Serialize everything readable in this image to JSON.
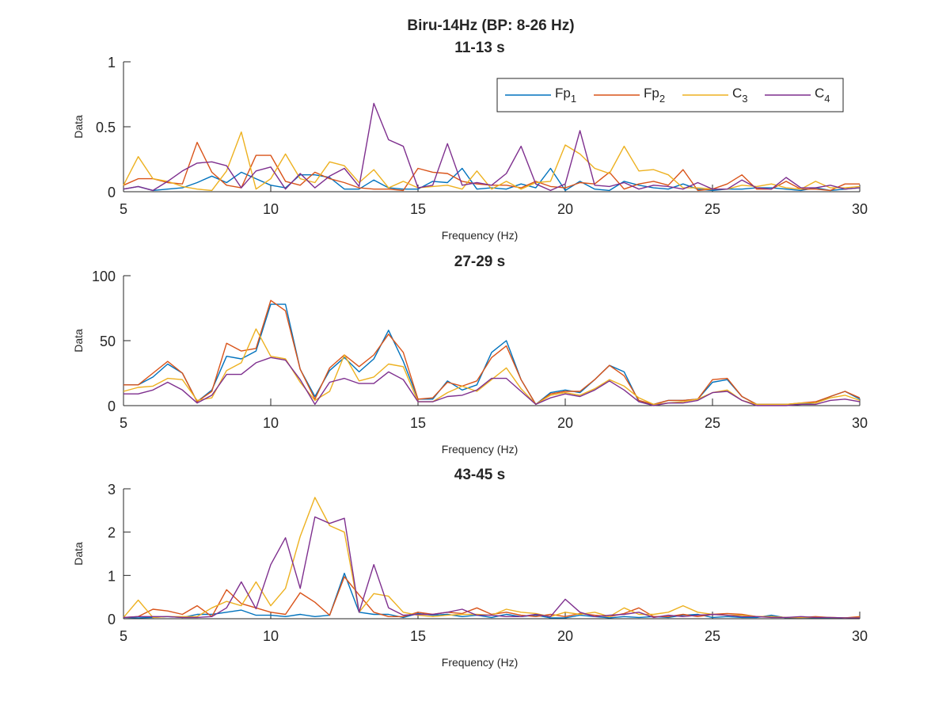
{
  "figure_title": "Biru-14Hz (BP: 8-26 Hz)",
  "legend": [
    {
      "name": "Fp",
      "sub": "1",
      "color": "#0072BD"
    },
    {
      "name": "Fp",
      "sub": "2",
      "color": "#D95319"
    },
    {
      "name": "C",
      "sub": "3",
      "color": "#EDB120"
    },
    {
      "name": "C",
      "sub": "4",
      "color": "#7E2F8E"
    }
  ],
  "chart_data": [
    {
      "type": "line",
      "title": "11-13 s",
      "xlabel": "Frequency (Hz)",
      "ylabel": "Data",
      "xlim": [
        5,
        30
      ],
      "ylim": [
        0,
        1
      ],
      "xticks": [
        5,
        10,
        15,
        20,
        25,
        30
      ],
      "yticks": [
        0,
        0.5,
        1
      ],
      "ytick_labels": [
        "0",
        "0.5",
        "1"
      ],
      "x": [
        5.0,
        5.5,
        6.0,
        6.5,
        7.0,
        7.5,
        8.0,
        8.5,
        9.0,
        9.5,
        10.0,
        10.5,
        11.0,
        11.5,
        12.0,
        12.5,
        13.0,
        13.5,
        14.0,
        14.5,
        15.0,
        15.5,
        16.0,
        16.5,
        17.0,
        17.5,
        18.0,
        18.5,
        19.0,
        19.5,
        20.0,
        20.5,
        21.0,
        21.5,
        22.0,
        22.5,
        23.0,
        23.5,
        24.0,
        24.5,
        25.0,
        25.5,
        26.0,
        26.5,
        27.0,
        27.5,
        28.0,
        28.5,
        29.0,
        29.5,
        30.0
      ],
      "series": [
        {
          "name": "Fp1",
          "values": [
            0.02,
            0.04,
            0.01,
            0.02,
            0.03,
            0.07,
            0.12,
            0.07,
            0.15,
            0.1,
            0.05,
            0.03,
            0.13,
            0.13,
            0.11,
            0.02,
            0.02,
            0.09,
            0.03,
            0.02,
            0.02,
            0.08,
            0.07,
            0.18,
            0.02,
            0.03,
            0.02,
            0.06,
            0.03,
            0.18,
            0.01,
            0.08,
            0.02,
            0.01,
            0.08,
            0.05,
            0.03,
            0.02,
            0.06,
            0.02,
            0.01,
            0.02,
            0.02,
            0.03,
            0.03,
            0.02,
            0.01,
            0.03,
            0.01,
            0.02,
            0.03
          ]
        },
        {
          "name": "Fp2",
          "values": [
            0.05,
            0.1,
            0.1,
            0.07,
            0.06,
            0.38,
            0.15,
            0.05,
            0.03,
            0.28,
            0.28,
            0.08,
            0.05,
            0.15,
            0.1,
            0.07,
            0.03,
            0.02,
            0.02,
            0.01,
            0.18,
            0.15,
            0.14,
            0.08,
            0.06,
            0.05,
            0.05,
            0.03,
            0.08,
            0.04,
            0.03,
            0.07,
            0.06,
            0.15,
            0.02,
            0.06,
            0.08,
            0.05,
            0.17,
            0.01,
            0.02,
            0.06,
            0.13,
            0.02,
            0.02,
            0.08,
            0.02,
            0.02,
            0.01,
            0.06,
            0.06
          ]
        },
        {
          "name": "C3",
          "values": [
            0.05,
            0.27,
            0.1,
            0.08,
            0.04,
            0.02,
            0.01,
            0.16,
            0.46,
            0.02,
            0.1,
            0.29,
            0.1,
            0.07,
            0.23,
            0.2,
            0.07,
            0.17,
            0.03,
            0.08,
            0.03,
            0.04,
            0.05,
            0.02,
            0.16,
            0.02,
            0.08,
            0.02,
            0.07,
            0.08,
            0.36,
            0.29,
            0.18,
            0.14,
            0.35,
            0.16,
            0.17,
            0.13,
            0.03,
            0.03,
            0.02,
            0.02,
            0.05,
            0.04,
            0.06,
            0.03,
            0.02,
            0.08,
            0.03,
            0.03,
            0.04
          ]
        },
        {
          "name": "C4",
          "values": [
            0.02,
            0.04,
            0.01,
            0.08,
            0.16,
            0.22,
            0.23,
            0.2,
            0.03,
            0.16,
            0.19,
            0.02,
            0.14,
            0.03,
            0.12,
            0.18,
            0.04,
            0.68,
            0.4,
            0.35,
            0.03,
            0.05,
            0.37,
            0.05,
            0.07,
            0.05,
            0.14,
            0.35,
            0.06,
            0.01,
            0.06,
            0.47,
            0.05,
            0.04,
            0.07,
            0.02,
            0.05,
            0.04,
            0.02,
            0.07,
            0.02,
            0.02,
            0.09,
            0.03,
            0.02,
            0.11,
            0.03,
            0.03,
            0.05,
            0.02,
            0.03
          ]
        }
      ]
    },
    {
      "type": "line",
      "title": "27-29 s",
      "xlabel": "Frequency (Hz)",
      "ylabel": "Data",
      "xlim": [
        5,
        30
      ],
      "ylim": [
        0,
        100
      ],
      "xticks": [
        5,
        10,
        15,
        20,
        25,
        30
      ],
      "yticks": [
        0,
        50,
        100
      ],
      "ytick_labels": [
        "0",
        "50",
        "100"
      ],
      "x": [
        5.0,
        5.5,
        6.0,
        6.5,
        7.0,
        7.5,
        8.0,
        8.5,
        9.0,
        9.5,
        10.0,
        10.5,
        11.0,
        11.5,
        12.0,
        12.5,
        13.0,
        13.5,
        14.0,
        14.5,
        15.0,
        15.5,
        16.0,
        16.5,
        17.0,
        17.5,
        18.0,
        18.5,
        19.0,
        19.5,
        20.0,
        20.5,
        21.0,
        21.5,
        22.0,
        22.5,
        23.0,
        23.5,
        24.0,
        24.5,
        25.0,
        25.5,
        26.0,
        26.5,
        27.0,
        27.5,
        28.0,
        28.5,
        29.0,
        29.5,
        30.0
      ],
      "series": [
        {
          "name": "Fp1",
          "values": [
            16,
            16,
            22,
            32,
            25,
            3,
            12,
            38,
            36,
            42,
            78,
            78,
            28,
            7,
            27,
            37,
            26,
            36,
            58,
            34,
            5,
            5,
            19,
            12,
            16,
            41,
            50,
            20,
            1,
            10,
            12,
            10,
            20,
            31,
            26,
            3,
            1,
            4,
            4,
            5,
            18,
            20,
            7,
            1,
            1,
            1,
            1,
            2,
            7,
            11,
            5
          ]
        },
        {
          "name": "Fp2",
          "values": [
            16,
            16,
            25,
            34,
            25,
            3,
            11,
            48,
            42,
            44,
            81,
            73,
            28,
            5,
            29,
            39,
            30,
            39,
            55,
            41,
            5,
            6,
            18,
            15,
            19,
            37,
            46,
            20,
            1,
            9,
            11,
            11,
            20,
            31,
            23,
            4,
            1,
            4,
            4,
            5,
            20,
            21,
            7,
            1,
            1,
            1,
            2,
            3,
            7,
            11,
            6
          ]
        },
        {
          "name": "C3",
          "values": [
            11,
            14,
            15,
            21,
            20,
            4,
            6,
            27,
            33,
            59,
            38,
            36,
            18,
            4,
            11,
            39,
            19,
            22,
            32,
            30,
            3,
            3,
            10,
            15,
            11,
            20,
            29,
            13,
            1,
            8,
            10,
            8,
            13,
            20,
            15,
            6,
            1,
            2,
            3,
            5,
            10,
            12,
            4,
            1,
            1,
            1,
            2,
            2,
            6,
            8,
            4
          ]
        },
        {
          "name": "C4",
          "values": [
            9,
            9,
            12,
            18,
            12,
            2,
            8,
            24,
            24,
            33,
            37,
            35,
            20,
            1,
            18,
            21,
            17,
            17,
            26,
            20,
            3,
            3,
            7,
            8,
            12,
            21,
            21,
            11,
            1,
            6,
            9,
            7,
            12,
            19,
            12,
            3,
            0,
            2,
            2,
            4,
            10,
            11,
            4,
            0,
            0,
            0,
            1,
            1,
            4,
            5,
            3
          ]
        }
      ]
    },
    {
      "type": "line",
      "title": "43-45 s",
      "xlabel": "Frequency (Hz)",
      "ylabel": "Data",
      "xlim": [
        5,
        30
      ],
      "ylim": [
        0,
        3
      ],
      "xticks": [
        5,
        10,
        15,
        20,
        25,
        30
      ],
      "yticks": [
        0,
        1,
        2,
        3
      ],
      "ytick_labels": [
        "0",
        "1",
        "2",
        "3"
      ],
      "x": [
        5.0,
        5.5,
        6.0,
        6.5,
        7.0,
        7.5,
        8.0,
        8.5,
        9.0,
        9.5,
        10.0,
        10.5,
        11.0,
        11.5,
        12.0,
        12.5,
        13.0,
        13.5,
        14.0,
        14.5,
        15.0,
        15.5,
        16.0,
        16.5,
        17.0,
        17.5,
        18.0,
        18.5,
        19.0,
        19.5,
        20.0,
        20.5,
        21.0,
        21.5,
        22.0,
        22.5,
        23.0,
        23.5,
        24.0,
        24.5,
        25.0,
        25.5,
        26.0,
        26.5,
        27.0,
        27.5,
        28.0,
        28.5,
        29.0,
        29.5,
        30.0
      ],
      "series": [
        {
          "name": "Fp1",
          "values": [
            0.03,
            0.02,
            0.03,
            0.05,
            0.03,
            0.1,
            0.1,
            0.15,
            0.2,
            0.08,
            0.08,
            0.05,
            0.1,
            0.05,
            0.08,
            1.05,
            0.15,
            0.1,
            0.1,
            0.03,
            0.12,
            0.08,
            0.1,
            0.05,
            0.08,
            0.03,
            0.1,
            0.05,
            0.08,
            0.02,
            0.02,
            0.08,
            0.05,
            0.02,
            0.05,
            0.03,
            0.05,
            0.03,
            0.08,
            0.1,
            0.03,
            0.05,
            0.03,
            0.03,
            0.08,
            0.02,
            0.03,
            0.02,
            0.02,
            0.02,
            0.03
          ]
        },
        {
          "name": "Fp2",
          "values": [
            0.03,
            0.05,
            0.22,
            0.18,
            0.1,
            0.3,
            0.05,
            0.67,
            0.35,
            0.25,
            0.15,
            0.1,
            0.6,
            0.38,
            0.08,
            0.97,
            0.55,
            0.15,
            0.05,
            0.05,
            0.15,
            0.1,
            0.15,
            0.12,
            0.25,
            0.1,
            0.15,
            0.08,
            0.05,
            0.1,
            0.05,
            0.12,
            0.08,
            0.05,
            0.12,
            0.25,
            0.05,
            0.05,
            0.1,
            0.05,
            0.1,
            0.12,
            0.1,
            0.05,
            0.05,
            0.03,
            0.03,
            0.05,
            0.03,
            0.02,
            0.05
          ]
        },
        {
          "name": "C3",
          "values": [
            0.03,
            0.43,
            0.03,
            0.05,
            0.05,
            0.05,
            0.25,
            0.4,
            0.3,
            0.85,
            0.3,
            0.7,
            1.9,
            2.8,
            2.15,
            2.0,
            0.15,
            0.58,
            0.52,
            0.15,
            0.08,
            0.05,
            0.08,
            0.1,
            0.1,
            0.08,
            0.22,
            0.15,
            0.12,
            0.05,
            0.15,
            0.1,
            0.15,
            0.05,
            0.25,
            0.1,
            0.1,
            0.15,
            0.3,
            0.15,
            0.1,
            0.08,
            0.08,
            0.05,
            0.05,
            0.03,
            0.03,
            0.03,
            0.03,
            0.02,
            0.03
          ]
        },
        {
          "name": "C4",
          "values": [
            0.03,
            0.05,
            0.05,
            0.05,
            0.03,
            0.03,
            0.05,
            0.25,
            0.85,
            0.23,
            1.25,
            1.87,
            0.7,
            2.35,
            2.2,
            2.32,
            0.15,
            1.25,
            0.25,
            0.08,
            0.1,
            0.1,
            0.15,
            0.22,
            0.08,
            0.08,
            0.05,
            0.05,
            0.1,
            0.05,
            0.45,
            0.15,
            0.05,
            0.08,
            0.1,
            0.15,
            0.03,
            0.08,
            0.05,
            0.08,
            0.1,
            0.08,
            0.05,
            0.05,
            0.03,
            0.03,
            0.05,
            0.03,
            0.03,
            0.02,
            0.02
          ]
        }
      ]
    }
  ]
}
